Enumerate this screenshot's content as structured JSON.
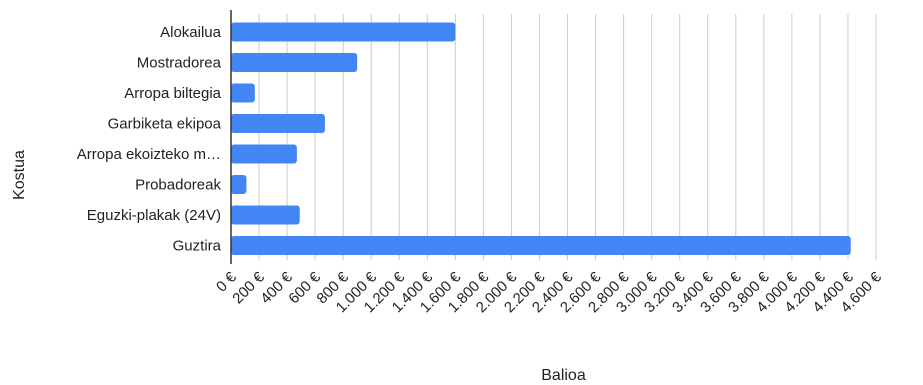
{
  "chart_data": {
    "type": "bar",
    "orientation": "horizontal",
    "categories": [
      "Alokailua",
      "Mostradorea",
      "Arropa biltegia",
      "Garbiketa ekipoa",
      "Arropa ekoizteko m…",
      "Probadoreak",
      "Eguzki-plakak (24V)",
      "Guztira"
    ],
    "values": [
      1600,
      900,
      170,
      670,
      470,
      110,
      490,
      4420
    ],
    "xlabel": "Balioa",
    "ylabel": "Kostua",
    "xlim": [
      0,
      4600
    ],
    "xticks": [
      0,
      200,
      400,
      600,
      800,
      1000,
      1200,
      1400,
      1600,
      1800,
      2000,
      2200,
      2400,
      2600,
      2800,
      3000,
      3200,
      3400,
      3600,
      3800,
      4000,
      4200,
      4400,
      4600
    ],
    "tick_labels": [
      "0 €",
      "200 €",
      "400 €",
      "600 €",
      "800 €",
      "1.000 €",
      "1.200 €",
      "1.400 €",
      "1.600 €",
      "1.800 €",
      "2.000 €",
      "2.200 €",
      "2.400 €",
      "2.600 €",
      "2.800 €",
      "3.000 €",
      "3.200 €",
      "3.400 €",
      "3.600 €",
      "3.800 €",
      "4.000 €",
      "4.200 €",
      "4.400 €",
      "4.600 €"
    ],
    "grid": true,
    "legend": "none",
    "bar_color": "#4285f4",
    "grid_color": "#cccccc",
    "axis_color": "#333333"
  }
}
